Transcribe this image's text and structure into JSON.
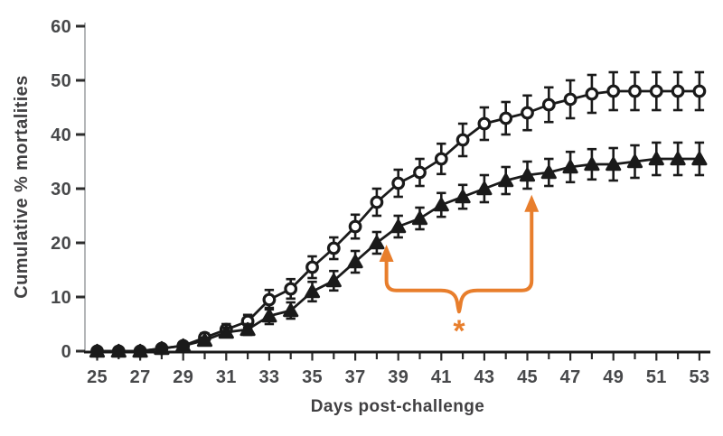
{
  "chart_data": {
    "type": "line",
    "xlabel": "Days post-challenge",
    "ylabel": "Cumulative % mortalities",
    "xlim": [
      25,
      53
    ],
    "ylim": [
      0,
      60
    ],
    "y_ticks": [
      0,
      10,
      20,
      30,
      40,
      50,
      60
    ],
    "x_label_days": [
      25,
      27,
      29,
      31,
      33,
      35,
      37,
      39,
      41,
      43,
      45,
      47,
      49,
      51,
      53
    ],
    "x_minor_tick_every": 1,
    "grid": false,
    "legend": "none",
    "x": [
      25,
      26,
      27,
      28,
      29,
      30,
      31,
      32,
      33,
      34,
      35,
      36,
      37,
      38,
      39,
      40,
      41,
      42,
      43,
      44,
      45,
      46,
      47,
      48,
      49,
      50,
      51,
      52,
      53
    ],
    "series": [
      {
        "name": "open-circles",
        "marker": "open-circle",
        "color": "#1A1A1A",
        "values": [
          0,
          0,
          0,
          0.5,
          1,
          2.5,
          4,
          5.5,
          9.5,
          11.5,
          15.5,
          19,
          23,
          27.5,
          31,
          33,
          35.5,
          39,
          42,
          43,
          44,
          45.5,
          46.5,
          47.5,
          48,
          48,
          48,
          48,
          48
        ],
        "errors": [
          0,
          0,
          0,
          0,
          0.5,
          0.8,
          1,
          1.2,
          1.8,
          1.8,
          2,
          2,
          2.2,
          2.5,
          2.5,
          2.5,
          2.8,
          3,
          3,
          3,
          3.2,
          3.2,
          3.5,
          3.5,
          3.5,
          3.5,
          3.5,
          3.5,
          3.5
        ]
      },
      {
        "name": "filled-triangles",
        "marker": "filled-triangle",
        "color": "#1A1A1A",
        "values": [
          0,
          0,
          0,
          0.5,
          1,
          2,
          3.5,
          4,
          6.5,
          7.5,
          11,
          13,
          16.5,
          20,
          23,
          24.5,
          27,
          28.5,
          30,
          31.5,
          32.5,
          33,
          34,
          34.5,
          34.5,
          35,
          35.5,
          35.5,
          35.5
        ],
        "errors": [
          0,
          0,
          0,
          0,
          0,
          0.5,
          0.8,
          1,
          1.5,
          1.5,
          1.8,
          1.8,
          2,
          2,
          2,
          2,
          2.2,
          2.2,
          2.5,
          2.5,
          2.5,
          2.5,
          2.8,
          2.8,
          3,
          3,
          3,
          3,
          3
        ]
      }
    ],
    "annotation": {
      "symbol": "*",
      "bracket_left_day": 38.45,
      "bracket_right_day": 45.2,
      "bracket_bar_value": 11.2,
      "bracket_dip_value": 7.3,
      "left_arrow_tip_value": 19.5,
      "right_arrow_tip_value": 28.7,
      "asterisk_day": 41.8,
      "asterisk_value": 3.8
    },
    "colors": {
      "ink": "#1A1A1A",
      "tick": "#2D2D2D",
      "label": "#47484A",
      "y_axis_line": "#B4B6B8",
      "accent_orange": "#E87E2C",
      "background": "#FFFFFF"
    }
  }
}
